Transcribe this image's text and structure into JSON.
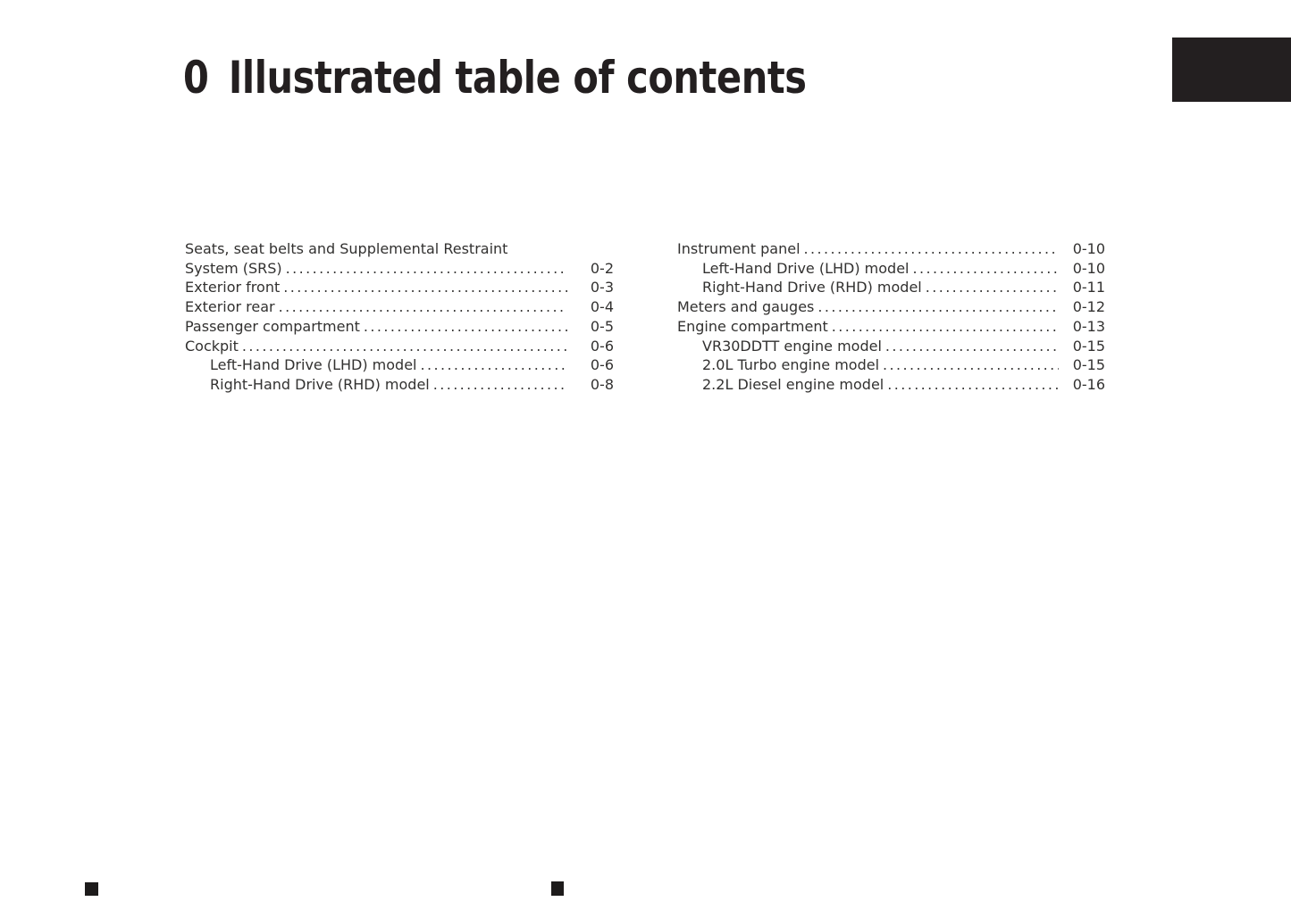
{
  "header": {
    "chapter_number": "0",
    "title": "Illustrated table of contents"
  },
  "toc": {
    "left": [
      {
        "label": "Seats, seat belts and Supplemental Restraint",
        "page": ""
      },
      {
        "label": "System (SRS)",
        "page": "0-2"
      },
      {
        "label": "Exterior front",
        "page": "0-3"
      },
      {
        "label": "Exterior rear",
        "page": "0-4"
      },
      {
        "label": "Passenger compartment",
        "page": "0-5"
      },
      {
        "label": "Cockpit",
        "page": "0-6"
      },
      {
        "label": "Left-Hand Drive (LHD) model",
        "page": "0-6"
      },
      {
        "label": "Right-Hand Drive (RHD) model",
        "page": "0-8"
      }
    ],
    "right": [
      {
        "label": "Instrument panel",
        "page": "0-10"
      },
      {
        "label": "Left-Hand Drive (LHD) model",
        "page": "0-10"
      },
      {
        "label": "Right-Hand Drive (RHD) model",
        "page": "0-11"
      },
      {
        "label": "Meters and gauges",
        "page": "0-12"
      },
      {
        "label": "Engine compartment",
        "page": "0-13"
      },
      {
        "label": "VR30DDTT engine model",
        "page": "0-15"
      },
      {
        "label": "2.0L Turbo engine model",
        "page": "0-15"
      },
      {
        "label": "2.2L Diesel engine model",
        "page": "0-16"
      }
    ]
  },
  "colors": {
    "background": "#ffffff",
    "heading_text": "#231f20",
    "body_text": "#323130",
    "chapter_tab": "#231f20"
  }
}
